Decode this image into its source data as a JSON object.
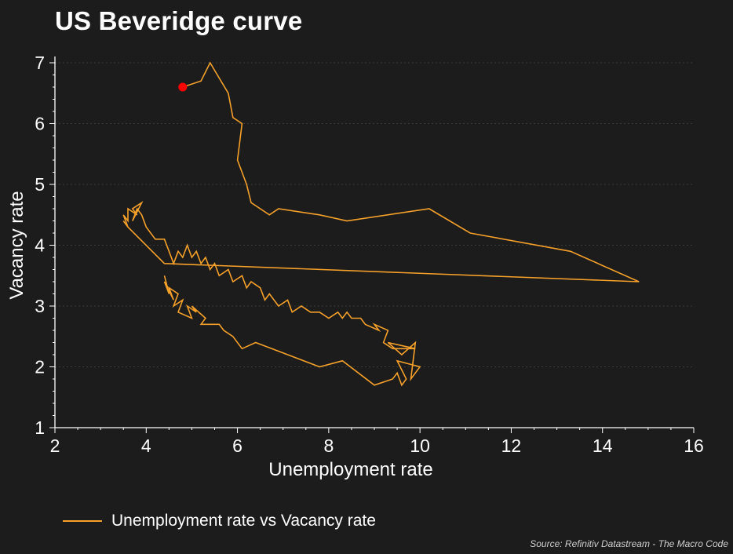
{
  "title": "US Beveridge curve",
  "source": "Source: Refinitiv Datastream - The Macro Code",
  "colors": {
    "background": "#1c1c1c",
    "series": "#f5a02a",
    "marker": "#ff0000",
    "axis": "#ffffff",
    "grid": "#3a3a3a"
  },
  "chart_data": {
    "type": "line",
    "title": "US Beveridge curve",
    "xlabel": "Unemployment rate",
    "ylabel": "Vacancy rate",
    "xlim": [
      2,
      16
    ],
    "ylim": [
      1,
      7
    ],
    "xticks": [
      "2",
      "4",
      "6",
      "8",
      "10",
      "12",
      "14",
      "16"
    ],
    "yticks": [
      "1",
      "2",
      "3",
      "4",
      "5",
      "6",
      "7"
    ],
    "grid": true,
    "legend_position": "bottom-left",
    "series": [
      {
        "name": "Unemployment rate vs Vacancy rate",
        "x": [
          4.4,
          4.5,
          4.4,
          4.6,
          4.5,
          4.7,
          4.6,
          4.8,
          4.7,
          5.0,
          4.9,
          5.1,
          5.0,
          5.3,
          5.2,
          5.6,
          5.7,
          5.9,
          6.1,
          6.4,
          7.8,
          8.3,
          9.0,
          9.4,
          9.5,
          9.6,
          9.7,
          9.5,
          10.0,
          9.8,
          9.9,
          9.6,
          9.3,
          9.9,
          9.4,
          9.2,
          9.3,
          9.0,
          9.1,
          8.8,
          8.7,
          8.5,
          8.4,
          8.3,
          8.2,
          8.0,
          7.8,
          7.6,
          7.4,
          7.2,
          7.1,
          6.9,
          6.7,
          6.6,
          6.5,
          6.3,
          6.2,
          6.1,
          5.9,
          5.8,
          5.6,
          5.5,
          5.4,
          5.3,
          5.2,
          5.1,
          5.0,
          4.9,
          4.8,
          4.7,
          4.6,
          4.5,
          4.4,
          4.2,
          4.0,
          3.9,
          3.8,
          3.7,
          3.9,
          3.7,
          3.8,
          3.6,
          3.6,
          3.5,
          3.6,
          3.5,
          3.6,
          4.4,
          14.8,
          13.3,
          11.1,
          10.2,
          8.4,
          7.8,
          6.9,
          6.7,
          6.3,
          6.2,
          6.0,
          6.1,
          5.9,
          5.8,
          5.4,
          5.2,
          4.8
        ],
        "y": [
          3.5,
          3.2,
          3.4,
          3.1,
          3.3,
          3.2,
          3.0,
          3.1,
          2.9,
          2.8,
          3.0,
          2.9,
          3.0,
          2.8,
          2.7,
          2.7,
          2.6,
          2.5,
          2.3,
          2.4,
          2.0,
          2.1,
          1.7,
          1.8,
          1.9,
          1.7,
          1.8,
          2.1,
          2.0,
          1.8,
          2.4,
          2.2,
          2.4,
          2.3,
          2.3,
          2.4,
          2.6,
          2.7,
          2.6,
          2.7,
          2.8,
          2.8,
          2.9,
          2.8,
          2.9,
          2.8,
          2.9,
          2.9,
          3.0,
          2.9,
          3.1,
          3.0,
          3.2,
          3.1,
          3.3,
          3.4,
          3.3,
          3.5,
          3.4,
          3.6,
          3.5,
          3.7,
          3.6,
          3.8,
          3.7,
          3.9,
          3.8,
          4.0,
          3.8,
          3.9,
          3.7,
          3.9,
          4.1,
          4.1,
          4.3,
          4.5,
          4.6,
          4.4,
          4.7,
          4.6,
          4.5,
          4.6,
          4.4,
          4.5,
          4.3,
          4.4,
          4.3,
          3.7,
          3.4,
          3.9,
          4.2,
          4.6,
          4.4,
          4.5,
          4.6,
          4.5,
          4.7,
          5.0,
          5.4,
          6.0,
          6.1,
          6.5,
          7.0,
          6.7,
          6.6
        ]
      }
    ],
    "highlight_point": {
      "x": 4.8,
      "y": 6.6
    }
  }
}
